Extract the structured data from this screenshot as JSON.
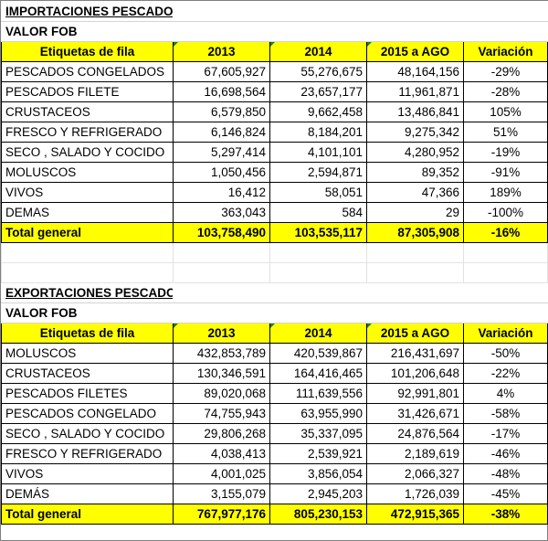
{
  "imports": {
    "title": "IMPORTACIONES PESCADOS Y MARISCOS",
    "subtitle": "VALOR FOB",
    "headers": [
      "Etiquetas de fila",
      "2013",
      "2014",
      "2015 a AGO",
      "Variación"
    ],
    "rows": [
      {
        "label": "PESCADOS CONGELADOS",
        "y2013": "67,605,927",
        "y2014": "55,276,675",
        "y2015": "48,164,156",
        "var": "-29%"
      },
      {
        "label": "PESCADOS FILETE",
        "y2013": "16,698,564",
        "y2014": "23,657,177",
        "y2015": "11,961,871",
        "var": "-28%"
      },
      {
        "label": "CRUSTACEOS",
        "y2013": "6,579,850",
        "y2014": "9,662,458",
        "y2015": "13,486,841",
        "var": "105%"
      },
      {
        "label": "FRESCO Y REFRIGERADO",
        "y2013": "6,146,824",
        "y2014": "8,184,201",
        "y2015": "9,275,342",
        "var": "51%"
      },
      {
        "label": "SECO , SALADO Y COCIDO",
        "y2013": "5,297,414",
        "y2014": "4,101,101",
        "y2015": "4,280,952",
        "var": "-19%"
      },
      {
        "label": "MOLUSCOS",
        "y2013": "1,050,456",
        "y2014": "2,594,871",
        "y2015": "89,352",
        "var": "-91%"
      },
      {
        "label": "VIVOS",
        "y2013": "16,412",
        "y2014": "58,051",
        "y2015": "47,366",
        "var": "189%"
      },
      {
        "label": "DEMAS",
        "y2013": "363,043",
        "y2014": "584",
        "y2015": "29",
        "var": "-100%"
      }
    ],
    "total": {
      "label": "Total general",
      "y2013": "103,758,490",
      "y2014": "103,535,117",
      "y2015": "87,305,908",
      "var": "-16%"
    }
  },
  "exports": {
    "title": "EXPORTACIONES PESCADOS Y MARISCOS",
    "subtitle": "VALOR FOB",
    "headers": [
      "Etiquetas de fila",
      "2013",
      "2014",
      "2015 a AGO",
      "Variación"
    ],
    "rows": [
      {
        "label": "MOLUSCOS",
        "y2013": "432,853,789",
        "y2014": "420,539,867",
        "y2015": "216,431,697",
        "var": "-50%"
      },
      {
        "label": "CRUSTACEOS",
        "y2013": "130,346,591",
        "y2014": "164,416,465",
        "y2015": "101,206,648",
        "var": "-22%"
      },
      {
        "label": "PESCADOS FILETES",
        "y2013": "89,020,068",
        "y2014": "111,639,556",
        "y2015": "92,991,801",
        "var": "4%"
      },
      {
        "label": "PESCADOS CONGELADO",
        "y2013": "74,755,943",
        "y2014": "63,955,990",
        "y2015": "31,426,671",
        "var": "-58%"
      },
      {
        "label": "SECO , SALADO Y COCIDO",
        "y2013": "29,806,268",
        "y2014": "35,337,095",
        "y2015": "24,876,564",
        "var": "-17%"
      },
      {
        "label": "FRESCO Y REFRIGERADO",
        "y2013": "4,038,413",
        "y2014": "2,539,921",
        "y2015": "2,189,619",
        "var": "-46%"
      },
      {
        "label": "VIVOS",
        "y2013": "4,001,025",
        "y2014": "3,856,054",
        "y2015": "2,066,327",
        "var": "-48%"
      },
      {
        "label": "DEMÁS",
        "y2013": "3,155,079",
        "y2014": "2,945,203",
        "y2015": "1,726,039",
        "var": "-45%"
      }
    ],
    "total": {
      "label": "Total general",
      "y2013": "767,977,176",
      "y2014": "805,230,153",
      "y2015": "472,915,365",
      "var": "-38%"
    }
  },
  "colors": {
    "header_fill": "#ffff00",
    "total_fill": "#ffff00",
    "indicator": "#1e7b34"
  }
}
